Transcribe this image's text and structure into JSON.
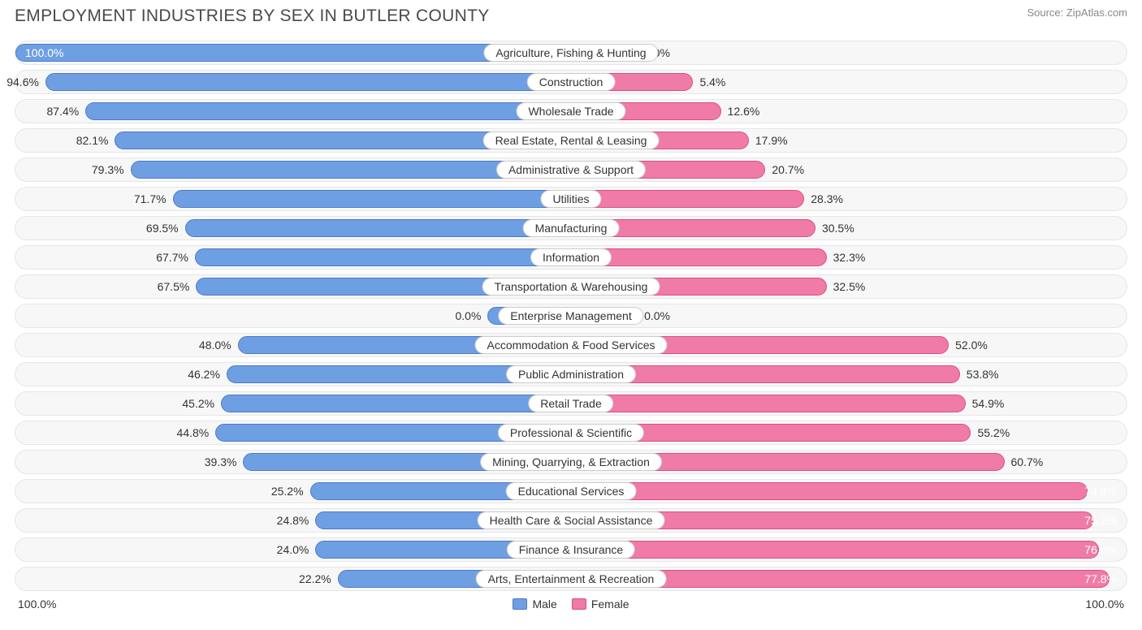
{
  "title": "EMPLOYMENT INDUSTRIES BY SEX IN BUTLER COUNTY",
  "source": "Source: ZipAtlas.com",
  "chart": {
    "type": "diverging-bar",
    "axis_max_label": "100.0%",
    "background_color": "#ffffff",
    "row_bg": "#f7f7f7",
    "row_border": "#e6e6e6",
    "male_fill": "#6f9fe3",
    "male_border": "#4a7bc8",
    "female_fill": "#f07ba6",
    "female_border": "#d94f87",
    "label_bg": "#ffffff",
    "label_border": "#cccccc",
    "legend": {
      "male": "Male",
      "female": "Female"
    },
    "rows": [
      {
        "category": "Agriculture, Fishing & Hunting",
        "male_pct": 100.0,
        "male_label": "100.0%",
        "female_pct": 0.0,
        "female_bar": 12,
        "female_label": "0.0%"
      },
      {
        "category": "Construction",
        "male_pct": 94.6,
        "male_label": "94.6%",
        "female_pct": 5.4,
        "female_bar": 22,
        "female_label": "5.4%"
      },
      {
        "category": "Wholesale Trade",
        "male_pct": 87.4,
        "male_label": "87.4%",
        "female_pct": 12.6,
        "female_bar": 27,
        "female_label": "12.6%"
      },
      {
        "category": "Real Estate, Rental & Leasing",
        "male_pct": 82.1,
        "male_label": "82.1%",
        "female_pct": 17.9,
        "female_bar": 32,
        "female_label": "17.9%"
      },
      {
        "category": "Administrative & Support",
        "male_pct": 79.3,
        "male_label": "79.3%",
        "female_pct": 20.7,
        "female_bar": 35,
        "female_label": "20.7%"
      },
      {
        "category": "Utilities",
        "male_pct": 71.7,
        "male_label": "71.7%",
        "female_pct": 28.3,
        "female_bar": 42,
        "female_label": "28.3%"
      },
      {
        "category": "Manufacturing",
        "male_pct": 69.5,
        "male_label": "69.5%",
        "female_pct": 30.5,
        "female_bar": 44,
        "female_label": "30.5%"
      },
      {
        "category": "Information",
        "male_pct": 67.7,
        "male_label": "67.7%",
        "female_pct": 32.3,
        "female_bar": 46,
        "female_label": "32.3%"
      },
      {
        "category": "Transportation & Warehousing",
        "male_pct": 67.5,
        "male_label": "67.5%",
        "female_pct": 32.5,
        "female_bar": 46,
        "female_label": "32.5%"
      },
      {
        "category": "Enterprise Management",
        "male_pct": 0.0,
        "male_bar": 15,
        "male_label": "0.0%",
        "female_pct": 0.0,
        "female_bar": 12,
        "female_label": "0.0%"
      },
      {
        "category": "Accommodation & Food Services",
        "male_pct": 48.0,
        "male_bar": 60,
        "male_label": "48.0%",
        "female_pct": 52.0,
        "female_bar": 68,
        "female_label": "52.0%"
      },
      {
        "category": "Public Administration",
        "male_pct": 46.2,
        "male_bar": 62,
        "male_label": "46.2%",
        "female_pct": 53.8,
        "female_bar": 70,
        "female_label": "53.8%"
      },
      {
        "category": "Retail Trade",
        "male_pct": 45.2,
        "male_bar": 63,
        "male_label": "45.2%",
        "female_pct": 54.9,
        "female_bar": 71,
        "female_label": "54.9%"
      },
      {
        "category": "Professional & Scientific",
        "male_pct": 44.8,
        "male_bar": 64,
        "male_label": "44.8%",
        "female_pct": 55.2,
        "female_bar": 72,
        "female_label": "55.2%"
      },
      {
        "category": "Mining, Quarrying, & Extraction",
        "male_pct": 39.3,
        "male_bar": 59,
        "male_label": "39.3%",
        "female_pct": 60.7,
        "female_bar": 78,
        "female_label": "60.7%"
      },
      {
        "category": "Educational Services",
        "male_pct": 25.2,
        "male_bar": 47,
        "male_label": "25.2%",
        "female_pct": 74.8,
        "female_bar": 93,
        "female_label": "74.8%",
        "female_inside": true
      },
      {
        "category": "Health Care & Social Assistance",
        "male_pct": 24.8,
        "male_bar": 46,
        "male_label": "24.8%",
        "female_pct": 75.2,
        "female_bar": 94,
        "female_label": "75.2%",
        "female_inside": true
      },
      {
        "category": "Finance & Insurance",
        "male_pct": 24.0,
        "male_bar": 46,
        "male_label": "24.0%",
        "female_pct": 76.0,
        "female_bar": 95,
        "female_label": "76.0%",
        "female_inside": true
      },
      {
        "category": "Arts, Entertainment & Recreation",
        "male_pct": 22.2,
        "male_bar": 42,
        "male_label": "22.2%",
        "female_pct": 77.8,
        "female_bar": 97,
        "female_label": "77.8%",
        "female_inside": true
      }
    ]
  }
}
